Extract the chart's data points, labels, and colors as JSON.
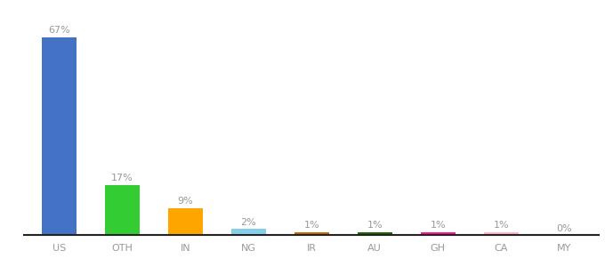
{
  "categories": [
    "US",
    "OTH",
    "IN",
    "NG",
    "IR",
    "AU",
    "GH",
    "CA",
    "MY"
  ],
  "values": [
    67,
    17,
    9,
    2,
    1,
    1,
    1,
    1,
    0
  ],
  "labels": [
    "67%",
    "17%",
    "9%",
    "2%",
    "1%",
    "1%",
    "1%",
    "1%",
    "0%"
  ],
  "bar_colors": [
    "#4472C4",
    "#33CC33",
    "#FFA500",
    "#87CEEB",
    "#CC6600",
    "#1A6600",
    "#FF1493",
    "#FFB6C1",
    "#CCCCCC"
  ],
  "background_color": "#FFFFFF",
  "label_color": "#999999",
  "tick_color": "#999999",
  "spine_color": "#222222",
  "figsize": [
    6.8,
    3.0
  ],
  "dpi": 100,
  "ylim": [
    0,
    75
  ],
  "bar_width": 0.55
}
